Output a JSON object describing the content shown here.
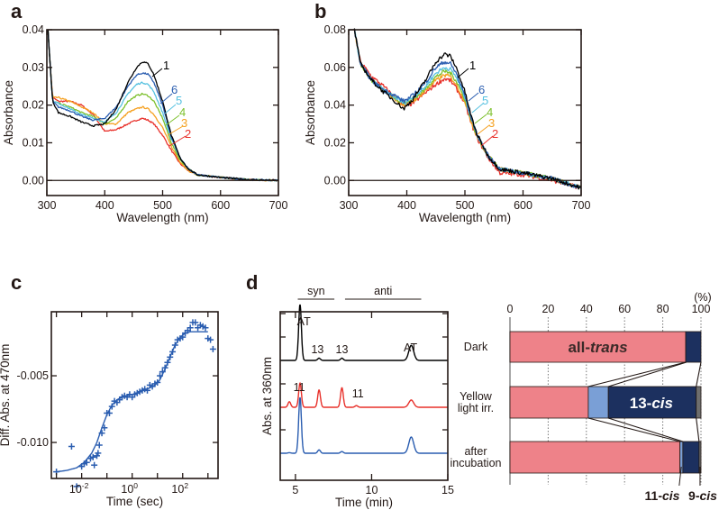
{
  "figure_panels": [
    "a",
    "b",
    "c",
    "d"
  ],
  "chart_data": [
    {
      "panel": "a",
      "type": "line",
      "title": "",
      "xlabel": "Wavelength (nm)",
      "ylabel": "Absorbance",
      "xlim": [
        300,
        700
      ],
      "ylim": [
        -0.004,
        0.04
      ],
      "xticks": [
        300,
        400,
        500,
        600,
        700
      ],
      "xtick_labels": [
        "300",
        "400",
        "500",
        "600",
        "700"
      ],
      "yticks": [
        0.0,
        0.01,
        0.02,
        0.03,
        0.04
      ],
      "ytick_labels": [
        "0.00",
        "0.01",
        "0.02",
        "0.03",
        "0.04"
      ],
      "zero_line": true,
      "series": [
        {
          "name": "1",
          "color": "#000000",
          "x": [
            302,
            306,
            310,
            320,
            340,
            360,
            380,
            400,
            420,
            440,
            455,
            465,
            475,
            485,
            500,
            515,
            530,
            545,
            560,
            600,
            650,
            700
          ],
          "y": [
            0.04,
            0.03,
            0.021,
            0.018,
            0.017,
            0.0155,
            0.0145,
            0.015,
            0.019,
            0.026,
            0.03,
            0.0315,
            0.031,
            0.028,
            0.021,
            0.012,
            0.006,
            0.003,
            0.0015,
            0.0008,
            0.0002,
            0.0
          ]
        },
        {
          "name": "6",
          "color": "#2a5db0",
          "x": [
            302,
            306,
            310,
            320,
            340,
            360,
            380,
            400,
            420,
            440,
            455,
            465,
            475,
            485,
            500,
            515,
            530,
            545,
            560,
            600,
            650,
            700
          ],
          "y": [
            0.04,
            0.03,
            0.021,
            0.0195,
            0.0185,
            0.017,
            0.016,
            0.0165,
            0.0195,
            0.025,
            0.028,
            0.0285,
            0.0282,
            0.026,
            0.02,
            0.0115,
            0.006,
            0.003,
            0.0015,
            0.0008,
            0.0002,
            0.0
          ]
        },
        {
          "name": "5",
          "color": "#56c1e0",
          "x": [
            302,
            306,
            310,
            320,
            340,
            360,
            380,
            400,
            420,
            440,
            455,
            465,
            475,
            485,
            500,
            515,
            530,
            545,
            560,
            600,
            650,
            700
          ],
          "y": [
            0.04,
            0.03,
            0.021,
            0.0205,
            0.019,
            0.0175,
            0.0165,
            0.0155,
            0.018,
            0.023,
            0.0255,
            0.026,
            0.0255,
            0.0235,
            0.018,
            0.011,
            0.006,
            0.003,
            0.0015,
            0.0008,
            0.0002,
            0.0
          ]
        },
        {
          "name": "4",
          "color": "#7cc02c",
          "x": [
            302,
            306,
            310,
            320,
            340,
            360,
            380,
            400,
            420,
            440,
            455,
            465,
            475,
            485,
            500,
            515,
            530,
            545,
            560,
            600,
            650,
            700
          ],
          "y": [
            0.04,
            0.03,
            0.021,
            0.0205,
            0.0195,
            0.018,
            0.017,
            0.015,
            0.0165,
            0.021,
            0.0225,
            0.023,
            0.0225,
            0.021,
            0.0165,
            0.01,
            0.0055,
            0.003,
            0.0015,
            0.0008,
            0.0002,
            0.0
          ]
        },
        {
          "name": "3",
          "color": "#f5a020",
          "x": [
            302,
            306,
            310,
            320,
            340,
            360,
            380,
            400,
            420,
            440,
            455,
            465,
            475,
            485,
            500,
            515,
            530,
            545,
            560,
            600,
            650,
            700
          ],
          "y": [
            0.04,
            0.03,
            0.022,
            0.022,
            0.021,
            0.0195,
            0.018,
            0.015,
            0.015,
            0.018,
            0.019,
            0.0195,
            0.019,
            0.0175,
            0.014,
            0.009,
            0.005,
            0.0025,
            0.0015,
            0.0008,
            0.0002,
            0.0
          ]
        },
        {
          "name": "2",
          "color": "#e8302a",
          "x": [
            302,
            306,
            310,
            320,
            340,
            360,
            380,
            400,
            420,
            440,
            455,
            465,
            475,
            485,
            500,
            515,
            530,
            545,
            560,
            600,
            650,
            700
          ],
          "y": [
            0.04,
            0.03,
            0.022,
            0.021,
            0.021,
            0.02,
            0.0175,
            0.013,
            0.0135,
            0.015,
            0.016,
            0.0165,
            0.016,
            0.015,
            0.012,
            0.008,
            0.0045,
            0.0025,
            0.0015,
            0.0008,
            0.0002,
            0.0
          ]
        }
      ],
      "annotations": [
        "1",
        "6",
        "5",
        "4",
        "3",
        "2"
      ]
    },
    {
      "panel": "b",
      "type": "line",
      "title": "",
      "xlabel": "Wavelength (nm)",
      "ylabel": "Absorbance",
      "xlim": [
        300,
        700
      ],
      "ylim": [
        -0.008,
        0.08
      ],
      "xticks": [
        300,
        400,
        500,
        600,
        700
      ],
      "xtick_labels": [
        "300",
        "400",
        "500",
        "600",
        "700"
      ],
      "yticks": [
        0.0,
        0.02,
        0.04,
        0.06,
        0.08
      ],
      "ytick_labels": [
        "0.00",
        "0.02",
        "0.04",
        "0.06",
        "0.08"
      ],
      "zero_line": true,
      "series": [
        {
          "name": "1",
          "color": "#000000",
          "x": [
            310,
            320,
            340,
            360,
            380,
            395,
            410,
            430,
            450,
            465,
            475,
            485,
            500,
            510,
            520,
            540,
            560,
            600,
            650,
            700
          ],
          "y": [
            0.08,
            0.062,
            0.053,
            0.047,
            0.042,
            0.038,
            0.043,
            0.052,
            0.063,
            0.067,
            0.066,
            0.06,
            0.047,
            0.035,
            0.025,
            0.013,
            0.006,
            0.004,
            0.001,
            -0.004
          ]
        },
        {
          "name": "6",
          "color": "#2a5db0",
          "x": [
            310,
            320,
            340,
            360,
            380,
            395,
            410,
            430,
            450,
            465,
            475,
            485,
            500,
            510,
            520,
            540,
            560,
            600,
            650,
            700
          ],
          "y": [
            0.08,
            0.062,
            0.053,
            0.048,
            0.045,
            0.042,
            0.045,
            0.051,
            0.06,
            0.063,
            0.062,
            0.057,
            0.045,
            0.034,
            0.025,
            0.013,
            0.006,
            0.004,
            0.001,
            -0.004
          ]
        },
        {
          "name": "5",
          "color": "#56c1e0",
          "x": [
            310,
            320,
            340,
            360,
            380,
            395,
            410,
            430,
            450,
            465,
            475,
            485,
            500,
            510,
            520,
            540,
            560,
            600,
            650,
            700
          ],
          "y": [
            0.08,
            0.062,
            0.053,
            0.048,
            0.044,
            0.041,
            0.044,
            0.049,
            0.057,
            0.06,
            0.059,
            0.055,
            0.044,
            0.034,
            0.025,
            0.013,
            0.006,
            0.004,
            0.001,
            -0.004
          ]
        },
        {
          "name": "4",
          "color": "#7cc02c",
          "x": [
            310,
            320,
            340,
            360,
            380,
            395,
            410,
            430,
            450,
            465,
            475,
            485,
            500,
            510,
            520,
            540,
            560,
            600,
            650,
            700
          ],
          "y": [
            0.08,
            0.062,
            0.053,
            0.048,
            0.044,
            0.041,
            0.043,
            0.048,
            0.055,
            0.058,
            0.057,
            0.053,
            0.043,
            0.033,
            0.024,
            0.013,
            0.006,
            0.004,
            0.001,
            -0.004
          ]
        },
        {
          "name": "3",
          "color": "#f5a020",
          "x": [
            310,
            320,
            340,
            360,
            380,
            395,
            410,
            430,
            450,
            465,
            475,
            485,
            500,
            510,
            520,
            540,
            560,
            600,
            650,
            700
          ],
          "y": [
            0.08,
            0.062,
            0.053,
            0.048,
            0.043,
            0.04,
            0.042,
            0.047,
            0.053,
            0.056,
            0.055,
            0.051,
            0.042,
            0.032,
            0.024,
            0.013,
            0.006,
            0.004,
            0.001,
            -0.004
          ]
        },
        {
          "name": "2",
          "color": "#e8302a",
          "x": [
            310,
            320,
            340,
            360,
            380,
            395,
            410,
            430,
            450,
            465,
            475,
            485,
            500,
            510,
            520,
            540,
            560,
            600,
            650,
            700
          ],
          "y": [
            0.08,
            0.063,
            0.055,
            0.05,
            0.044,
            0.039,
            0.041,
            0.046,
            0.051,
            0.054,
            0.053,
            0.049,
            0.041,
            0.031,
            0.023,
            0.012,
            0.004,
            0.003,
            0.0,
            -0.004
          ]
        }
      ],
      "annotations": [
        "1",
        "6",
        "5",
        "4",
        "3",
        "2"
      ]
    },
    {
      "panel": "c",
      "type": "scatter",
      "title": "",
      "xlabel": "Time (sec)",
      "ylabel": "Diff. Abs. at 470nm",
      "xscale": "log",
      "xlim_log10": [
        -3.2,
        3.4
      ],
      "ylim": [
        -0.0127,
        -0.0002
      ],
      "xticks_log10": [
        -3,
        -2,
        -1,
        0,
        1,
        2,
        3
      ],
      "xtick_labels": [
        {
          "base": "10",
          "exp": "-2",
          "log10": -2
        },
        {
          "base": "10",
          "exp": "0",
          "log10": 0
        },
        {
          "base": "10",
          "exp": "2",
          "log10": 2
        }
      ],
      "yticks": [
        -0.01,
        -0.005
      ],
      "ytick_labels": [
        "-0.010",
        "-0.005"
      ],
      "color": "#2a5db0",
      "points_log10x": [
        -3.0,
        -2.4,
        -2.2,
        -2.0,
        -1.9,
        -1.8,
        -1.65,
        -1.55,
        -1.5,
        -1.4,
        -1.35,
        -1.3,
        -1.2,
        -1.1,
        -1.0,
        -0.9,
        -0.8,
        -0.7,
        -0.6,
        -0.5,
        -0.4,
        -0.3,
        -0.2,
        -0.1,
        0.0,
        0.1,
        0.2,
        0.3,
        0.4,
        0.5,
        0.6,
        0.7,
        0.8,
        0.9,
        1.0,
        1.1,
        1.2,
        1.3,
        1.4,
        1.5,
        1.6,
        1.7,
        1.8,
        1.9,
        2.0,
        2.1,
        2.2,
        2.3,
        2.4,
        2.5,
        2.6,
        2.7,
        2.8,
        2.9,
        3.0,
        3.1,
        3.2
      ],
      "points_y": [
        -0.0122,
        -0.0103,
        -0.0133,
        -0.0118,
        -0.0116,
        -0.0115,
        -0.0112,
        -0.0111,
        -0.0117,
        -0.011,
        -0.0108,
        -0.0102,
        -0.0093,
        -0.0089,
        -0.0078,
        -0.0078,
        -0.0073,
        -0.0069,
        -0.007,
        -0.0068,
        -0.0066,
        -0.0065,
        -0.0066,
        -0.0064,
        -0.0066,
        -0.0064,
        -0.0063,
        -0.0062,
        -0.0061,
        -0.006,
        -0.0061,
        -0.0057,
        -0.0058,
        -0.0056,
        -0.0055,
        -0.005,
        -0.0047,
        -0.0044,
        -0.004,
        -0.0036,
        -0.0032,
        -0.0027,
        -0.0023,
        -0.0022,
        -0.0021,
        -0.0018,
        -0.0016,
        -0.0014,
        -0.001,
        -0.001,
        -0.0014,
        -0.0012,
        -0.0013,
        -0.0014,
        -0.0022,
        -0.0023,
        -0.003
      ],
      "fit_log10x": [
        -3.0,
        -2.6,
        -2.2,
        -1.9,
        -1.6,
        -1.4,
        -1.2,
        -1.0,
        -0.8,
        -0.6,
        -0.4,
        -0.2,
        0.0,
        0.3,
        0.6,
        0.9,
        1.1,
        1.3,
        1.5,
        1.7,
        1.9,
        2.1,
        2.3,
        2.6,
        3.0
      ],
      "fit_y": [
        -0.0122,
        -0.0121,
        -0.0119,
        -0.0115,
        -0.0108,
        -0.01,
        -0.0089,
        -0.0079,
        -0.0072,
        -0.0068,
        -0.0066,
        -0.0065,
        -0.0064,
        -0.0062,
        -0.006,
        -0.0057,
        -0.0053,
        -0.0045,
        -0.0036,
        -0.0027,
        -0.0021,
        -0.0018,
        -0.0017,
        -0.0017,
        -0.0017
      ]
    },
    {
      "panel": "d",
      "type": "line",
      "title": "",
      "xlabel": "Time (min)",
      "ylabel": "Abs. at 360nm",
      "xlim": [
        4,
        15
      ],
      "xticks": [
        5,
        10,
        15
      ],
      "xtick_labels": [
        "5",
        "10",
        "15"
      ],
      "region_labels": [
        {
          "label": "syn",
          "from": 4.8,
          "to": 7.2
        },
        {
          "label": "anti",
          "from": 7.9,
          "to": 12.9
        }
      ],
      "peak_labels": [
        {
          "trace": 0,
          "text": "AT",
          "x": 5.3
        },
        {
          "trace": 0,
          "text": "13",
          "x": 6.5
        },
        {
          "trace": 0,
          "text": "13",
          "x": 8.0
        },
        {
          "trace": 0,
          "text": "AT",
          "x": 12.6
        },
        {
          "trace": 1,
          "text": "11",
          "x": 5.3
        },
        {
          "trace": 1,
          "text": "11",
          "x": 9.0
        }
      ],
      "series": [
        {
          "name": "Dark",
          "color": "#000000",
          "peaks": [
            [
              5.3,
              1.0
            ],
            [
              6.55,
              0.04
            ],
            [
              8.05,
              0.04
            ],
            [
              12.6,
              0.27
            ]
          ]
        },
        {
          "name": "Yellow light irr.",
          "color": "#e8302a",
          "peaks": [
            [
              4.6,
              0.1
            ],
            [
              5.3,
              0.43
            ],
            [
              6.55,
              0.31
            ],
            [
              8.05,
              0.35
            ],
            [
              9.0,
              0.03
            ],
            [
              12.6,
              0.13
            ]
          ]
        },
        {
          "name": "after incubation",
          "color": "#2a5db0",
          "peaks": [
            [
              4.6,
              0.01
            ],
            [
              5.3,
              1.0
            ],
            [
              6.55,
              0.06
            ],
            [
              8.05,
              0.03
            ],
            [
              12.6,
              0.29
            ]
          ]
        }
      ]
    },
    {
      "panel": "d-bar",
      "type": "bar",
      "orientation": "horizontal",
      "stacked": true,
      "xlabel": "(%)",
      "xlim": [
        0,
        100
      ],
      "xticks": [
        0,
        20,
        40,
        60,
        80,
        100
      ],
      "xtick_labels": [
        "0",
        "20",
        "40",
        "60",
        "80",
        "100"
      ],
      "grid": "vertical-dotted",
      "categories": [
        "Dark",
        "Yellow light irr.",
        "after incubation"
      ],
      "series": [
        {
          "name": "all-trans",
          "color": "#ee8289",
          "values": [
            92,
            41,
            89
          ]
        },
        {
          "name": "11-cis",
          "color": "#7a9fd6",
          "values": [
            0,
            10.5,
            1.5
          ]
        },
        {
          "name": "13-cis",
          "color": "#1c305f",
          "values": [
            8,
            46,
            8.5
          ]
        },
        {
          "name": "9-cis",
          "color": "#6e6e6e",
          "values": [
            0,
            2.5,
            1
          ]
        }
      ],
      "labels": {
        "all_trans_prefix": "all-",
        "all_trans_italic": "trans",
        "thirteen_prefix": "13-",
        "thirteen_italic": "cis",
        "eleven_prefix": "11-",
        "eleven_italic": "cis",
        "nine_prefix": "9-",
        "nine_italic": "cis"
      },
      "category_lines": [
        [
          "Dark"
        ],
        [
          "Yellow",
          "light irr."
        ],
        [
          "after",
          "incubation"
        ]
      ]
    }
  ]
}
